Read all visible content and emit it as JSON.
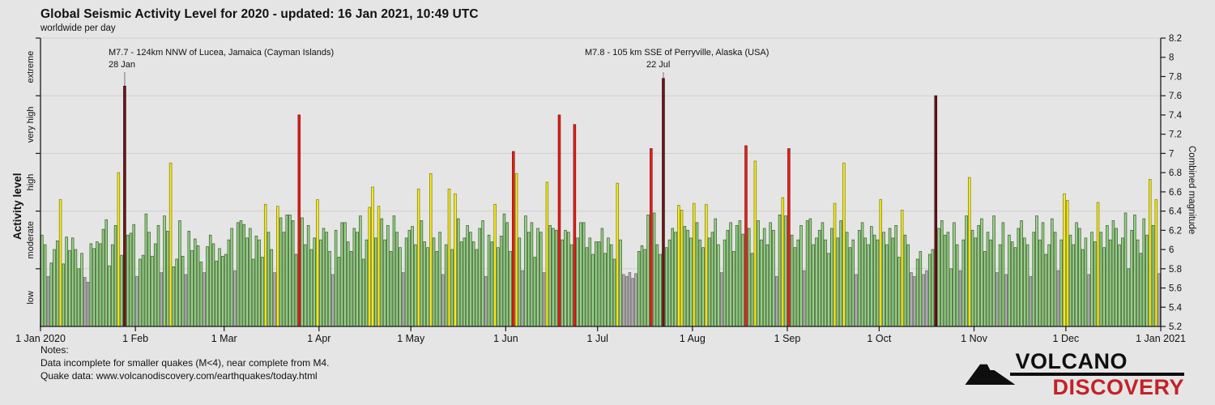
{
  "header": {
    "title": "Global Seismic Activity Level for 2020 - updated: 16 Jan 2021, 10:49 UTC",
    "subtitle": "worldwide per day"
  },
  "axes": {
    "left_title": "Activity level",
    "right_title": "Combined magnitude",
    "left_categories": [
      {
        "label": "extreme",
        "mid": 7.9
      },
      {
        "label": "very high",
        "mid": 7.3
      },
      {
        "label": "high",
        "mid": 6.7
      },
      {
        "label": "moderate",
        "mid": 6.1
      },
      {
        "label": "low",
        "mid": 5.5
      }
    ],
    "left_tick_values": [
      5.8,
      6.4,
      7.0,
      7.6,
      8.2
    ],
    "right_ticks": [
      {
        "value": 5.2,
        "label": "5.2"
      },
      {
        "value": 5.4,
        "label": "5.4"
      },
      {
        "value": 5.6,
        "label": "5.6"
      },
      {
        "value": 5.8,
        "label": "5.8"
      },
      {
        "value": 6.0,
        "label": "6"
      },
      {
        "value": 6.2,
        "label": "6.2"
      },
      {
        "value": 6.4,
        "label": "6.4"
      },
      {
        "value": 6.6,
        "label": "6.6"
      },
      {
        "value": 6.8,
        "label": "6.8"
      },
      {
        "value": 7.0,
        "label": "7"
      },
      {
        "value": 7.2,
        "label": "7.2"
      },
      {
        "value": 7.4,
        "label": "7.4"
      },
      {
        "value": 7.6,
        "label": "7.6"
      },
      {
        "value": 7.8,
        "label": "7.8"
      },
      {
        "value": 8.0,
        "label": "8"
      },
      {
        "value": 8.2,
        "label": "8.2"
      }
    ],
    "x_ticks": [
      {
        "label": "1 Jan 2020",
        "day": 1
      },
      {
        "label": "1 Feb",
        "day": 32
      },
      {
        "label": "1 Mar",
        "day": 61
      },
      {
        "label": "1 Apr",
        "day": 92
      },
      {
        "label": "1 May",
        "day": 122
      },
      {
        "label": "1 Jun",
        "day": 153
      },
      {
        "label": "1 Jul",
        "day": 183
      },
      {
        "label": "1 Aug",
        "day": 214
      },
      {
        "label": "1 Sep",
        "day": 245
      },
      {
        "label": "1 Oct",
        "day": 275
      },
      {
        "label": "1 Nov",
        "day": 306
      },
      {
        "label": "1 Dec",
        "day": 336
      },
      {
        "label": "1 Jan 2021",
        "day": 367
      }
    ]
  },
  "annotations": [
    {
      "line1": "M7.7 - 124km NNW of Lucea, Jamaica (Cayman Islands)",
      "line2": "28 Jan",
      "day": 28
    },
    {
      "line1": "M7.8 - 105 km SSE of Perryville, Alaska (USA)",
      "line2": "22 Jul",
      "day": 204
    }
  ],
  "notes": {
    "heading": "Notes:",
    "line1": "Data incomplete for smaller quakes (M<4), near complete from M4.",
    "line2": "Quake data: www.volcanodiscovery.com/earthquakes/today.html"
  },
  "logo": {
    "line1": "VOLCANO",
    "line2": "DISCOVERY"
  },
  "chart_data": {
    "type": "bar",
    "title": "Global Seismic Activity Level for 2020 - updated: 16 Jan 2021, 10:49 UTC",
    "subtitle": "worldwide per day",
    "xlabel": "",
    "ylabel_left": "Activity level",
    "ylabel_right": "Combined magnitude",
    "ylim": [
      5.2,
      8.2
    ],
    "gridlines": [
      5.8,
      6.4,
      7.0,
      7.6
    ],
    "x_start": "1 Jan 2020",
    "x_end": "1 Jan 2021",
    "days_in_year": 366,
    "level_thresholds": {
      "moderate": 5.8,
      "high": 6.4,
      "very_high": 7.0,
      "extreme": 7.6
    },
    "level_colors": {
      "low": {
        "fill": "#aeaeae",
        "stroke": "#6e6e6e"
      },
      "moderate": {
        "fill": "#98d68e",
        "stroke": "#44652f"
      },
      "high": {
        "fill": "#f5ee20",
        "stroke": "#8b840f"
      },
      "very_high": {
        "fill": "#e8211a",
        "stroke": "#8c120c"
      },
      "extreme": {
        "fill": "#6f1515",
        "stroke": "#310808"
      }
    },
    "grid_color": "#cfcfcf",
    "axis_color": "#1a1a1a",
    "annotation_line_color": "#999999",
    "values": [
      6.15,
      6.05,
      5.72,
      5.86,
      6.0,
      6.09,
      6.52,
      5.85,
      6.13,
      5.99,
      6.12,
      6.0,
      5.8,
      5.96,
      5.71,
      5.66,
      6.06,
      6.01,
      6.08,
      6.06,
      6.21,
      6.31,
      5.83,
      6.05,
      6.25,
      6.8,
      5.94,
      7.7,
      6.15,
      6.17,
      6.26,
      5.72,
      5.9,
      5.94,
      6.37,
      6.18,
      5.93,
      6.06,
      6.25,
      5.76,
      6.35,
      6.19,
      6.9,
      5.82,
      5.9,
      6.3,
      5.93,
      5.74,
      6.19,
      5.99,
      6.11,
      6.04,
      5.87,
      5.76,
      6.03,
      6.15,
      6.06,
      5.88,
      6.01,
      5.93,
      5.95,
      6.1,
      6.22,
      5.78,
      6.28,
      6.3,
      6.26,
      6.12,
      6.22,
      5.9,
      6.14,
      6.1,
      5.92,
      6.47,
      6.18,
      6.0,
      5.76,
      6.45,
      6.33,
      6.18,
      6.36,
      6.36,
      6.3,
      5.95,
      7.4,
      6.33,
      6.05,
      6.25,
      6.0,
      6.12,
      6.52,
      6.1,
      6.22,
      6.18,
      5.98,
      5.74,
      6.2,
      5.92,
      6.28,
      6.28,
      6.08,
      5.98,
      6.22,
      6.18,
      6.35,
      5.9,
      6.1,
      6.44,
      6.65,
      6.12,
      6.45,
      6.32,
      6.1,
      6.25,
      5.98,
      6.35,
      6.18,
      6.02,
      5.76,
      6.12,
      6.2,
      6.24,
      6.05,
      6.63,
      6.3,
      6.08,
      6.02,
      6.79,
      6.12,
      5.98,
      6.18,
      5.74,
      6.05,
      6.63,
      6.0,
      6.58,
      6.32,
      6.08,
      6.12,
      6.25,
      6.18,
      6.08,
      6.0,
      6.22,
      6.3,
      5.72,
      6.15,
      6.08,
      6.47,
      6.02,
      6.14,
      6.37,
      6.28,
      5.98,
      7.02,
      6.79,
      6.12,
      5.78,
      6.35,
      6.18,
      6.28,
      5.92,
      6.22,
      6.18,
      5.76,
      6.7,
      6.25,
      6.22,
      6.2,
      7.4,
      6.1,
      6.2,
      6.18,
      6.05,
      7.3,
      6.12,
      6.28,
      6.28,
      6.02,
      6.12,
      5.95,
      6.08,
      6.08,
      6.22,
      5.96,
      6.12,
      6.05,
      5.9,
      6.69,
      6.1,
      5.74,
      5.72,
      5.76,
      5.7,
      5.75,
      5.98,
      6.04,
      6.0,
      6.36,
      7.05,
      6.38,
      6.05,
      5.95,
      7.78,
      6.02,
      6.1,
      6.22,
      6.18,
      6.46,
      6.41,
      6.24,
      6.2,
      6.12,
      6.48,
      6.28,
      6.1,
      6.02,
      6.47,
      6.12,
      6.18,
      6.32,
      6.05,
      5.76,
      6.1,
      6.2,
      6.28,
      5.98,
      6.25,
      6.3,
      6.16,
      7.08,
      6.22,
      5.96,
      6.92,
      6.3,
      6.1,
      6.22,
      6.05,
      6.28,
      6.2,
      5.72,
      6.36,
      6.54,
      6.35,
      7.05,
      6.15,
      6.02,
      6.1,
      6.25,
      5.78,
      6.3,
      6.32,
      6.05,
      6.12,
      6.2,
      6.28,
      6.1,
      5.96,
      6.22,
      6.48,
      6.12,
      6.3,
      6.9,
      6.18,
      6.02,
      6.1,
      5.74,
      6.2,
      6.28,
      6.12,
      6.05,
      6.24,
      6.15,
      6.1,
      6.52,
      6.18,
      6.05,
      6.22,
      6.12,
      6.25,
      5.92,
      6.41,
      6.15,
      6.05,
      5.76,
      5.72,
      5.9,
      5.98,
      5.74,
      5.78,
      5.95,
      6.0,
      7.6,
      6.22,
      6.3,
      6.15,
      6.18,
      5.8,
      6.28,
      6.05,
      5.78,
      6.1,
      6.35,
      6.75,
      6.2,
      6.12,
      6.25,
      6.32,
      5.98,
      6.18,
      6.1,
      6.35,
      5.76,
      6.05,
      6.28,
      5.74,
      6.15,
      6.08,
      6.02,
      6.22,
      6.3,
      6.12,
      6.05,
      5.72,
      6.18,
      6.35,
      6.1,
      6.28,
      5.95,
      6.05,
      6.32,
      6.18,
      5.78,
      6.1,
      6.58,
      6.51,
      6.15,
      6.05,
      6.28,
      6.22,
      6.0,
      6.12,
      5.74,
      6.18,
      6.08,
      6.49,
      6.18,
      6.02,
      6.25,
      6.1,
      6.3,
      6.22,
      6.05,
      6.12,
      6.38,
      5.8,
      6.2,
      6.36,
      6.1,
      5.96,
      6.32,
      6.15,
      6.73,
      6.25,
      6.52,
      5.75
    ]
  }
}
